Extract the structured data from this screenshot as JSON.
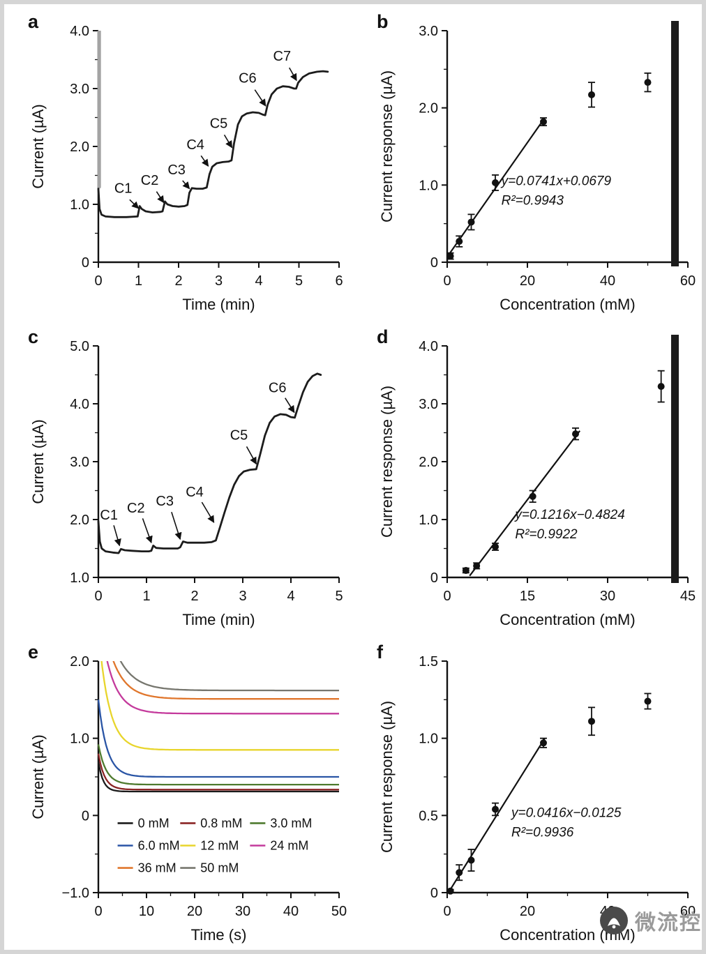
{
  "page": {
    "background": "#ffffff",
    "frame_color": "#d5d5d5",
    "artifact_color": "#1c1c1c"
  },
  "watermark": {
    "text": "微流控",
    "icon": "microfluidics-logo-icon",
    "text_color": "#9a9a9a",
    "logo_color": "#4a4a4a"
  },
  "chart_data": [
    {
      "id": "a",
      "panel_label": "a",
      "type": "line",
      "xlabel": "Time (min)",
      "ylabel": "Current (µA)",
      "xlim": [
        0,
        6
      ],
      "ylim": [
        0,
        4
      ],
      "xticks": {
        "values": [
          0,
          1,
          2,
          3,
          4,
          5,
          6
        ],
        "labels": [
          "0",
          "1",
          "2",
          "3",
          "4",
          "5",
          "6"
        ]
      },
      "yticks": {
        "values": [
          0,
          1,
          2,
          3,
          4
        ],
        "labels": [
          "0",
          "1.0",
          "2.0",
          "3.0",
          "4.0"
        ]
      },
      "yminor": 0.5,
      "series": [
        {
          "name": "initial-transient",
          "color": "#a3a3a3",
          "width": 5,
          "points": [
            [
              0.02,
              4.0
            ],
            [
              0.02,
              1.3
            ]
          ]
        },
        {
          "name": "amperometric-trace",
          "color": "#1c1c1c",
          "width": 2.8,
          "points": [
            [
              0,
              1.27
            ],
            [
              0.03,
              0.92
            ],
            [
              0.08,
              0.82
            ],
            [
              0.18,
              0.79
            ],
            [
              0.4,
              0.78
            ],
            [
              0.7,
              0.78
            ],
            [
              0.98,
              0.79
            ],
            [
              1.03,
              0.97
            ],
            [
              1.08,
              0.92
            ],
            [
              1.18,
              0.88
            ],
            [
              1.35,
              0.86
            ],
            [
              1.55,
              0.87
            ],
            [
              1.6,
              0.88
            ],
            [
              1.66,
              1.05
            ],
            [
              1.72,
              1.0
            ],
            [
              1.85,
              0.97
            ],
            [
              2.0,
              0.96
            ],
            [
              2.15,
              0.97
            ],
            [
              2.22,
              0.99
            ],
            [
              2.27,
              1.2
            ],
            [
              2.33,
              1.28
            ],
            [
              2.45,
              1.27
            ],
            [
              2.6,
              1.27
            ],
            [
              2.7,
              1.29
            ],
            [
              2.77,
              1.52
            ],
            [
              2.84,
              1.65
            ],
            [
              2.95,
              1.71
            ],
            [
              3.1,
              1.73
            ],
            [
              3.25,
              1.74
            ],
            [
              3.32,
              1.76
            ],
            [
              3.38,
              2.05
            ],
            [
              3.48,
              2.38
            ],
            [
              3.58,
              2.52
            ],
            [
              3.7,
              2.57
            ],
            [
              3.85,
              2.59
            ],
            [
              4.0,
              2.58
            ],
            [
              4.1,
              2.55
            ],
            [
              4.16,
              2.54
            ],
            [
              4.22,
              2.72
            ],
            [
              4.32,
              2.9
            ],
            [
              4.45,
              3.0
            ],
            [
              4.6,
              3.04
            ],
            [
              4.75,
              3.03
            ],
            [
              4.88,
              3.0
            ],
            [
              4.93,
              3.0
            ],
            [
              4.98,
              3.1
            ],
            [
              5.1,
              3.2
            ],
            [
              5.25,
              3.26
            ],
            [
              5.45,
              3.29
            ],
            [
              5.6,
              3.3
            ],
            [
              5.72,
              3.29
            ]
          ]
        }
      ],
      "annotations": [
        {
          "text": "C1",
          "text_xy": [
            0.62,
            1.2
          ],
          "from": [
            0.78,
            1.08
          ],
          "to": [
            1.0,
            0.93
          ]
        },
        {
          "text": "C2",
          "text_xy": [
            1.28,
            1.34
          ],
          "from": [
            1.45,
            1.22
          ],
          "to": [
            1.63,
            1.03
          ]
        },
        {
          "text": "C3",
          "text_xy": [
            1.95,
            1.52
          ],
          "from": [
            2.1,
            1.41
          ],
          "to": [
            2.27,
            1.27
          ]
        },
        {
          "text": "C4",
          "text_xy": [
            2.42,
            1.95
          ],
          "from": [
            2.56,
            1.84
          ],
          "to": [
            2.74,
            1.66
          ]
        },
        {
          "text": "C5",
          "text_xy": [
            3.0,
            2.32
          ],
          "from": [
            3.14,
            2.2
          ],
          "to": [
            3.33,
            1.98
          ]
        },
        {
          "text": "C6",
          "text_xy": [
            3.72,
            3.1
          ],
          "from": [
            3.9,
            2.98
          ],
          "to": [
            4.17,
            2.7
          ]
        },
        {
          "text": "C7",
          "text_xy": [
            4.58,
            3.48
          ],
          "from": [
            4.76,
            3.36
          ],
          "to": [
            4.94,
            3.14
          ]
        }
      ]
    },
    {
      "id": "b",
      "panel_label": "b",
      "type": "scatter",
      "xlabel": "Concentration (mM)",
      "ylabel": "Current response (µA)",
      "xlim": [
        0,
        60
      ],
      "ylim": [
        0,
        3
      ],
      "xticks": {
        "values": [
          0,
          20,
          40,
          60
        ],
        "labels": [
          "0",
          "20",
          "40",
          "60"
        ]
      },
      "yticks": {
        "values": [
          0,
          1,
          2,
          3
        ],
        "labels": [
          "0",
          "1.0",
          "2.0",
          "3.0"
        ]
      },
      "xminor": 10,
      "yminor": 0.5,
      "points": {
        "x": [
          0.8,
          3,
          6,
          12,
          24,
          36,
          50
        ],
        "y": [
          0.08,
          0.27,
          0.52,
          1.03,
          1.82,
          2.17,
          2.33
        ],
        "yerr": [
          0.04,
          0.07,
          0.1,
          0.1,
          0.05,
          0.16,
          0.12
        ]
      },
      "fit": {
        "slope": 0.0741,
        "intercept": 0.0679,
        "x0": 0.3,
        "x1": 24.3
      },
      "equation": {
        "lines": [
          "y=0.0741x+0.0679",
          "R²=0.9943"
        ],
        "xy": [
          13.5,
          1.0
        ]
      }
    },
    {
      "id": "c",
      "panel_label": "c",
      "type": "line",
      "xlabel": "Time (min)",
      "ylabel": "Current (µA)",
      "xlim": [
        0,
        5
      ],
      "ylim": [
        1,
        5
      ],
      "xticks": {
        "values": [
          0,
          1,
          2,
          3,
          4,
          5
        ],
        "labels": [
          "0",
          "1",
          "2",
          "3",
          "4",
          "5"
        ]
      },
      "yticks": {
        "values": [
          1,
          2,
          3,
          4,
          5
        ],
        "labels": [
          "1.0",
          "2.0",
          "3.0",
          "4.0",
          "5.0"
        ]
      },
      "yminor": 0.5,
      "series": [
        {
          "name": "amperometric-trace",
          "color": "#1c1c1c",
          "width": 2.8,
          "points": [
            [
              0,
              1.97
            ],
            [
              0.03,
              1.62
            ],
            [
              0.07,
              1.5
            ],
            [
              0.15,
              1.45
            ],
            [
              0.3,
              1.43
            ],
            [
              0.42,
              1.42
            ],
            [
              0.47,
              1.49
            ],
            [
              0.55,
              1.47
            ],
            [
              0.7,
              1.46
            ],
            [
              0.9,
              1.45
            ],
            [
              1.05,
              1.45
            ],
            [
              1.1,
              1.46
            ],
            [
              1.14,
              1.55
            ],
            [
              1.2,
              1.51
            ],
            [
              1.35,
              1.5
            ],
            [
              1.5,
              1.5
            ],
            [
              1.65,
              1.5
            ],
            [
              1.7,
              1.52
            ],
            [
              1.76,
              1.62
            ],
            [
              1.85,
              1.6
            ],
            [
              2.0,
              1.6
            ],
            [
              2.2,
              1.6
            ],
            [
              2.35,
              1.61
            ],
            [
              2.44,
              1.64
            ],
            [
              2.52,
              1.85
            ],
            [
              2.62,
              2.12
            ],
            [
              2.72,
              2.38
            ],
            [
              2.82,
              2.6
            ],
            [
              2.92,
              2.75
            ],
            [
              3.02,
              2.83
            ],
            [
              3.15,
              2.86
            ],
            [
              3.28,
              2.87
            ],
            [
              3.36,
              3.12
            ],
            [
              3.46,
              3.45
            ],
            [
              3.56,
              3.67
            ],
            [
              3.66,
              3.78
            ],
            [
              3.78,
              3.82
            ],
            [
              3.9,
              3.81
            ],
            [
              4.0,
              3.77
            ],
            [
              4.08,
              3.76
            ],
            [
              4.15,
              3.95
            ],
            [
              4.25,
              4.2
            ],
            [
              4.35,
              4.38
            ],
            [
              4.45,
              4.48
            ],
            [
              4.55,
              4.52
            ],
            [
              4.62,
              4.5
            ]
          ]
        }
      ],
      "annotations": [
        {
          "text": "C1",
          "text_xy": [
            0.22,
            2.0
          ],
          "from": [
            0.32,
            1.9
          ],
          "to": [
            0.44,
            1.55
          ]
        },
        {
          "text": "C2",
          "text_xy": [
            0.78,
            2.12
          ],
          "from": [
            0.92,
            2.02
          ],
          "to": [
            1.1,
            1.6
          ]
        },
        {
          "text": "C3",
          "text_xy": [
            1.38,
            2.24
          ],
          "from": [
            1.52,
            2.13
          ],
          "to": [
            1.7,
            1.66
          ]
        },
        {
          "text": "C4",
          "text_xy": [
            2.0,
            2.4
          ],
          "from": [
            2.15,
            2.3
          ],
          "to": [
            2.4,
            1.95
          ]
        },
        {
          "text": "C5",
          "text_xy": [
            2.92,
            3.38
          ],
          "from": [
            3.08,
            3.26
          ],
          "to": [
            3.28,
            2.96
          ]
        },
        {
          "text": "C6",
          "text_xy": [
            3.72,
            4.2
          ],
          "from": [
            3.88,
            4.1
          ],
          "to": [
            4.07,
            3.85
          ]
        }
      ]
    },
    {
      "id": "d",
      "panel_label": "d",
      "type": "scatter",
      "xlabel": "Concentration (mM)",
      "ylabel": "Current response (µA)",
      "xlim": [
        0,
        45
      ],
      "ylim": [
        0,
        4
      ],
      "xticks": {
        "values": [
          0,
          15,
          30,
          45
        ],
        "labels": [
          "0",
          "15",
          "30",
          "45"
        ]
      },
      "yticks": {
        "values": [
          0,
          1,
          2,
          3,
          4
        ],
        "labels": [
          "0",
          "1.0",
          "2.0",
          "3.0",
          "4.0"
        ]
      },
      "xminor": 7.5,
      "yminor": 0.5,
      "points": {
        "x": [
          3.5,
          5.5,
          9,
          16,
          24,
          40
        ],
        "y": [
          0.12,
          0.2,
          0.53,
          1.4,
          2.48,
          3.3
        ],
        "yerr": [
          0.04,
          0.05,
          0.06,
          0.1,
          0.1,
          0.27
        ]
      },
      "fit": {
        "slope": 0.1216,
        "intercept": -0.4824,
        "x0": 4.2,
        "x1": 24.8
      },
      "equation": {
        "lines": [
          "y=0.1216x−0.4824",
          "R²=0.9922"
        ],
        "xy": [
          12.7,
          1.01
        ]
      }
    },
    {
      "id": "e",
      "panel_label": "e",
      "type": "decay",
      "xlabel": "Time (s)",
      "ylabel": "Current (µA)",
      "xlim": [
        0,
        50
      ],
      "ylim": [
        -1,
        2
      ],
      "xticks": {
        "values": [
          0,
          10,
          20,
          30,
          40,
          50
        ],
        "labels": [
          "0",
          "10",
          "20",
          "30",
          "40",
          "50"
        ]
      },
      "yticks": {
        "values": [
          -1,
          0,
          1,
          2
        ],
        "labels": [
          "−1.0",
          "0",
          "1.0",
          "2.0"
        ]
      },
      "xminor": 5,
      "yminor": 0.5,
      "series": [
        {
          "label": "0 mM",
          "color": "#1a1a1a",
          "y0": 0.7,
          "yinf": 0.31,
          "tau": 1.0
        },
        {
          "label": "0.8 mM",
          "color": "#8a2424",
          "y0": 0.8,
          "yinf": 0.335,
          "tau": 1.3
        },
        {
          "label": "3.0 mM",
          "color": "#4e7a2e",
          "y0": 0.92,
          "yinf": 0.4,
          "tau": 1.6
        },
        {
          "label": "6.0 mM",
          "color": "#2a55a5",
          "y0": 1.5,
          "yinf": 0.5,
          "tau": 1.8
        },
        {
          "label": "12 mM",
          "color": "#e8d52c",
          "y0": 2.4,
          "yinf": 0.85,
          "tau": 2.2
        },
        {
          "label": "24 mM",
          "color": "#c43a9c",
          "y0": 2.7,
          "yinf": 1.32,
          "tau": 2.6
        },
        {
          "label": "36 mM",
          "color": "#e0762c",
          "y0": 2.9,
          "yinf": 1.51,
          "tau": 3.0
        },
        {
          "label": "50 mM",
          "color": "#76766e",
          "y0": 3.1,
          "yinf": 1.62,
          "tau": 3.4
        }
      ],
      "legend": {
        "cols_x": [
          4,
          17,
          31.5
        ],
        "rows_y": [
          -0.1,
          -0.39,
          -0.68
        ]
      }
    },
    {
      "id": "f",
      "panel_label": "f",
      "type": "scatter",
      "xlabel": "Concentration (mM)",
      "ylabel": "Current response (µA)",
      "xlim": [
        0,
        60
      ],
      "ylim": [
        0,
        1.5
      ],
      "xticks": {
        "values": [
          0,
          20,
          40,
          60
        ],
        "labels": [
          "0",
          "20",
          "40",
          "60"
        ]
      },
      "yticks": {
        "values": [
          0,
          0.5,
          1,
          1.5
        ],
        "labels": [
          "0",
          "0.5",
          "1.0",
          "1.5"
        ]
      },
      "xminor": 10,
      "yminor": 0.25,
      "points": {
        "x": [
          0.8,
          3,
          6,
          12,
          24,
          36,
          50
        ],
        "y": [
          0.01,
          0.13,
          0.21,
          0.54,
          0.97,
          1.11,
          1.24
        ],
        "yerr": [
          0.01,
          0.05,
          0.07,
          0.04,
          0.03,
          0.09,
          0.05
        ]
      },
      "fit": {
        "slope": 0.0416,
        "intercept": -0.0125,
        "x0": 0.6,
        "x1": 24.3
      },
      "equation": {
        "lines": [
          "y=0.0416x−0.0125",
          "R²=0.9936"
        ],
        "xy": [
          16,
          0.49
        ]
      }
    }
  ]
}
